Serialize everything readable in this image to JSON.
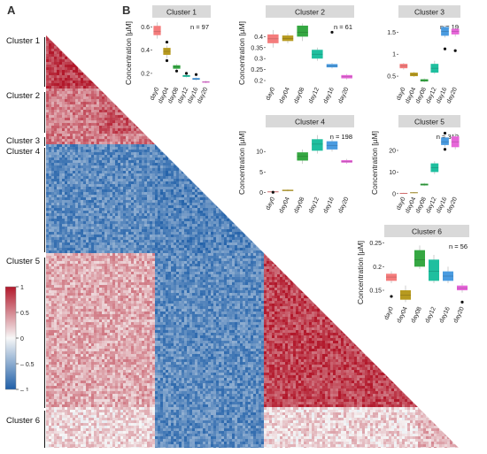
{
  "panel_a_label": "A",
  "panel_b_label": "B",
  "heatmap": {
    "clusters": [
      {
        "label": "Cluster 1",
        "value": 0.85
      },
      {
        "label": "Cluster 2",
        "value": 0.7
      },
      {
        "label": "Cluster 3",
        "value": 0.6
      },
      {
        "label": "Cluster 4",
        "value": -0.75
      },
      {
        "label": "Cluster 5",
        "value": 0.8
      },
      {
        "label": "Cluster 6",
        "value": 0.3
      }
    ],
    "colorbar": {
      "ticks": [
        {
          "value": 1,
          "label": "1"
        },
        {
          "value": 0.5,
          "label": "0.5"
        },
        {
          "value": 0,
          "label": "0"
        },
        {
          "value": -0.5,
          "label": "– 0.5"
        },
        {
          "value": -1,
          "label": "– 1"
        }
      ],
      "colors": {
        "negative": "#1f5fa8",
        "neutral": "#f7f7f7",
        "positive": "#b2182b"
      }
    }
  },
  "chart_data": [
    {
      "type": "box",
      "title": "Cluster 1",
      "n_label": "n = 97",
      "ylabel": "Concentration [µM]",
      "categories": [
        "day0",
        "day04",
        "day08",
        "day12",
        "day16",
        "day20"
      ],
      "ylim": [
        0.1,
        0.65
      ],
      "yticks": [
        0.2,
        0.4,
        0.6
      ],
      "boxes": [
        [
          0.53,
          0.61,
          0.56
        ],
        [
          0.36,
          0.42,
          0.39
        ],
        [
          0.24,
          0.27,
          0.255
        ],
        [
          0.17,
          0.185,
          0.178
        ],
        [
          0.145,
          0.16,
          0.152
        ],
        [
          0.12,
          0.13,
          0.125
        ]
      ],
      "whiskers": [
        [
          0.5,
          0.64
        ],
        [
          0.33,
          0.44
        ],
        [
          0.23,
          0.28
        ],
        [
          0.165,
          0.19
        ],
        [
          0.14,
          0.165
        ],
        [
          0.115,
          0.135
        ]
      ],
      "outliers": [
        [
          1,
          0.47
        ],
        [
          1,
          0.31
        ],
        [
          2,
          0.22
        ],
        [
          3,
          0.2
        ],
        [
          4,
          0.19
        ]
      ],
      "colors": [
        "#f47c7c",
        "#b79a1f",
        "#35a742",
        "#1fbf9f",
        "#4a9be0",
        "#e666d8"
      ]
    },
    {
      "type": "box",
      "title": "Cluster 2",
      "n_label": "n = 61",
      "ylabel": "Concentration [µM]",
      "categories": [
        "day0",
        "day04",
        "day08",
        "day12",
        "day16",
        "day20"
      ],
      "ylim": [
        0.18,
        0.47
      ],
      "yticks": [
        0.2,
        0.25,
        0.3,
        0.35,
        0.4
      ],
      "boxes": [
        [
          0.37,
          0.41,
          0.39
        ],
        [
          0.38,
          0.405,
          0.392
        ],
        [
          0.4,
          0.45,
          0.42
        ],
        [
          0.3,
          0.34,
          0.32
        ],
        [
          0.26,
          0.275,
          0.267
        ],
        [
          0.21,
          0.225,
          0.217
        ]
      ],
      "whiskers": [
        [
          0.35,
          0.43
        ],
        [
          0.37,
          0.415
        ],
        [
          0.38,
          0.46
        ],
        [
          0.29,
          0.35
        ],
        [
          0.255,
          0.28
        ],
        [
          0.205,
          0.23
        ]
      ],
      "outliers": [
        [
          4,
          0.42
        ]
      ],
      "colors": [
        "#f47c7c",
        "#b79a1f",
        "#35a742",
        "#1fbf9f",
        "#4a9be0",
        "#e666d8"
      ]
    },
    {
      "type": "box",
      "title": "Cluster 3",
      "n_label": "n = 19",
      "ylabel": "",
      "categories": [
        "day0",
        "day04",
        "day08",
        "day12",
        "day16",
        "day20"
      ],
      "ylim": [
        0.3,
        1.75
      ],
      "yticks": [
        0.5,
        1.0,
        1.5
      ],
      "boxes": [
        [
          0.68,
          0.78,
          0.73
        ],
        [
          0.5,
          0.58,
          0.54
        ],
        [
          0.38,
          0.43,
          0.4
        ],
        [
          0.58,
          0.78,
          0.68
        ],
        [
          1.42,
          1.62,
          1.52
        ],
        [
          1.45,
          1.58,
          1.52
        ]
      ],
      "whiskers": [
        [
          0.65,
          0.8
        ],
        [
          0.48,
          0.6
        ],
        [
          0.36,
          0.45
        ],
        [
          0.55,
          0.85
        ],
        [
          1.38,
          1.66
        ],
        [
          1.4,
          1.64
        ]
      ],
      "outliers": [
        [
          4,
          1.12
        ],
        [
          5,
          1.08
        ]
      ],
      "colors": [
        "#f47c7c",
        "#b79a1f",
        "#35a742",
        "#1fbf9f",
        "#4a9be0",
        "#e666d8"
      ]
    },
    {
      "type": "box",
      "title": "Cluster 4",
      "n_label": "n = 198",
      "ylabel": "Concentration [µM]",
      "categories": [
        "day0",
        "day04",
        "day08",
        "day12",
        "day16",
        "day20"
      ],
      "ylim": [
        -0.5,
        15
      ],
      "yticks": [
        0,
        5,
        10
      ],
      "boxes": [
        [
          0.1,
          0.3,
          0.2
        ],
        [
          0.4,
          0.7,
          0.55
        ],
        [
          7.8,
          9.8,
          8.8
        ],
        [
          10.2,
          13,
          11.8
        ],
        [
          10.5,
          12.5,
          11.5
        ],
        [
          7.3,
          7.9,
          7.6
        ]
      ],
      "whiskers": [
        [
          0,
          0.4
        ],
        [
          0.3,
          0.8
        ],
        [
          7.0,
          10.5
        ],
        [
          9.5,
          14
        ],
        [
          10,
          13
        ],
        [
          7.0,
          8.2
        ]
      ],
      "outliers": [
        [
          0,
          0.1
        ]
      ],
      "colors": [
        "#f47c7c",
        "#b79a1f",
        "#35a742",
        "#1fbf9f",
        "#4a9be0",
        "#e666d8"
      ]
    },
    {
      "type": "box",
      "title": "Cluster 5",
      "n_label": "n = 312",
      "ylabel": "Concentration [µM]",
      "categories": [
        "day0",
        "day04",
        "day08",
        "day12",
        "day16",
        "day20"
      ],
      "ylim": [
        -0.5,
        29
      ],
      "yticks": [
        0,
        10,
        20
      ],
      "boxes": [
        [
          0.1,
          0.3,
          0.2
        ],
        [
          0.3,
          0.6,
          0.45
        ],
        [
          3.8,
          4.6,
          4.2
        ],
        [
          10,
          14,
          12
        ],
        [
          22.5,
          26,
          24
        ],
        [
          21.5,
          26.5,
          24
        ]
      ],
      "whiskers": [
        [
          0,
          0.4
        ],
        [
          0.2,
          0.7
        ],
        [
          3.5,
          5
        ],
        [
          9,
          15
        ],
        [
          21.5,
          27
        ],
        [
          20.5,
          28
        ]
      ],
      "outliers": [
        [
          4,
          28
        ],
        [
          4,
          20.5
        ]
      ],
      "colors": [
        "#f47c7c",
        "#b79a1f",
        "#35a742",
        "#1fbf9f",
        "#4a9be0",
        "#e666d8"
      ]
    },
    {
      "type": "box",
      "title": "Cluster 6",
      "n_label": "n = 56",
      "ylabel": "Concentration [µM]",
      "categories": [
        "day0",
        "day04",
        "day08",
        "day12",
        "day16",
        "day20"
      ],
      "ylim": [
        0.12,
        0.255
      ],
      "yticks": [
        0.15,
        0.2,
        0.25
      ],
      "boxes": [
        [
          0.17,
          0.185,
          0.178
        ],
        [
          0.13,
          0.15,
          0.14
        ],
        [
          0.2,
          0.235,
          0.215
        ],
        [
          0.17,
          0.215,
          0.19
        ],
        [
          0.17,
          0.19,
          0.18
        ],
        [
          0.15,
          0.16,
          0.155
        ]
      ],
      "whiskers": [
        [
          0.165,
          0.19
        ],
        [
          0.125,
          0.16
        ],
        [
          0.195,
          0.245
        ],
        [
          0.165,
          0.225
        ],
        [
          0.165,
          0.2
        ],
        [
          0.145,
          0.165
        ]
      ],
      "outliers": [
        [
          0,
          0.137
        ],
        [
          5,
          0.125
        ]
      ],
      "colors": [
        "#f47c7c",
        "#b79a1f",
        "#35a742",
        "#1fbf9f",
        "#4a9be0",
        "#e666d8"
      ]
    }
  ]
}
